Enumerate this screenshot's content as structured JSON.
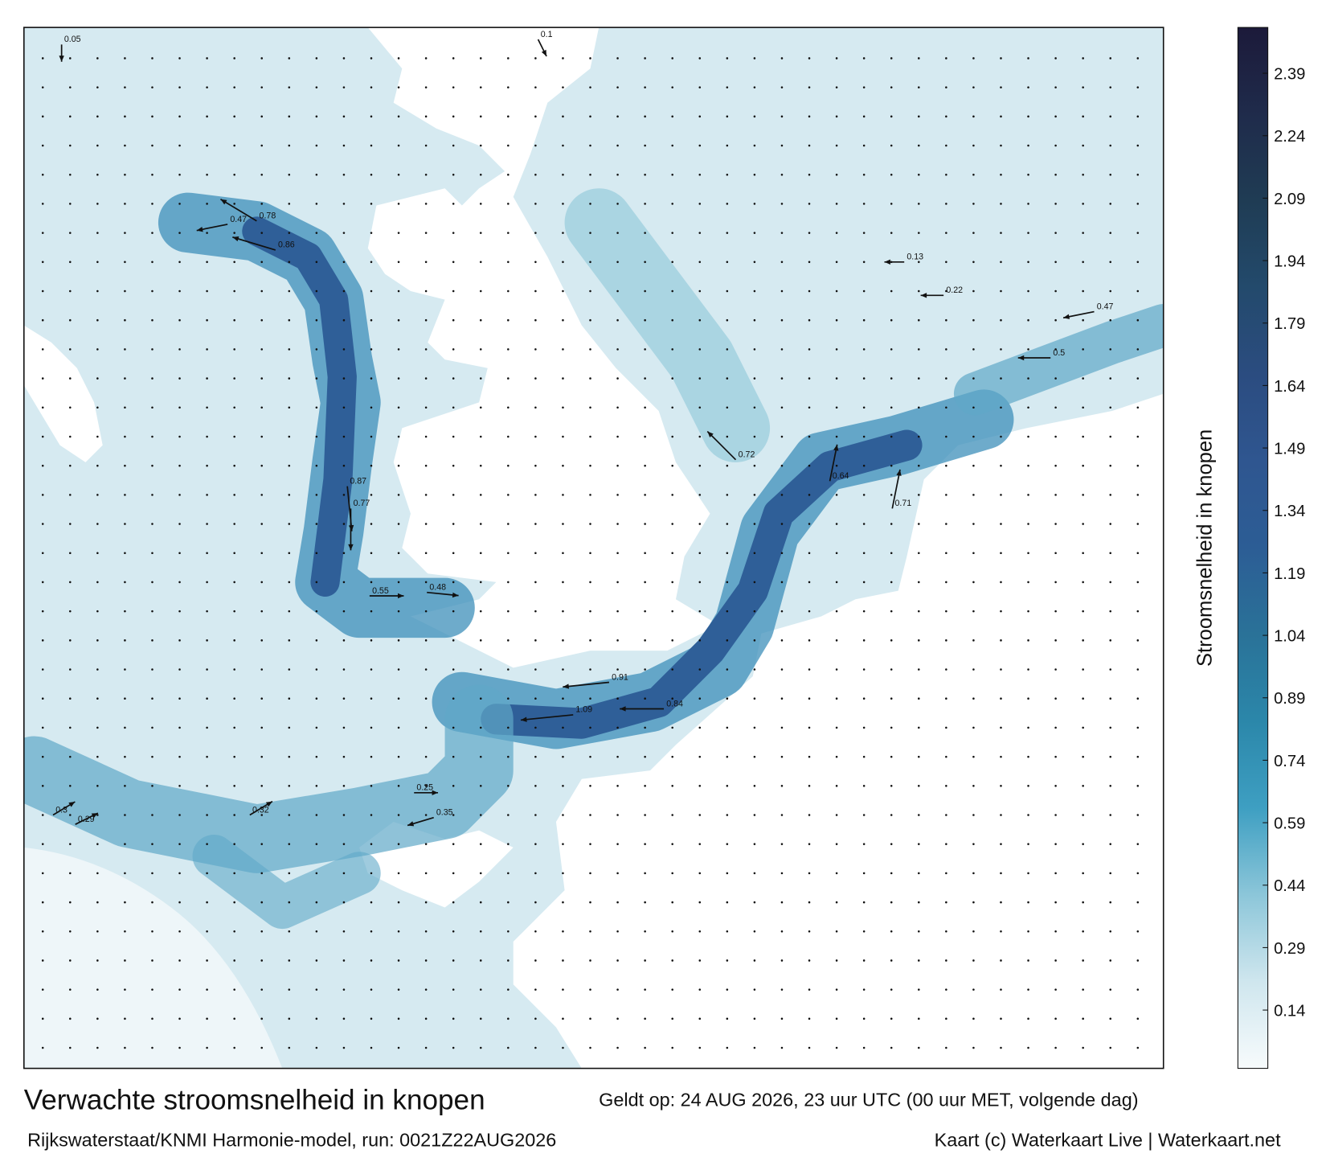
{
  "map": {
    "colorbar": {
      "label": "Stroomsnelheid in knopen",
      "clim": [
        0,
        2.5
      ],
      "ticks": [
        0.14,
        0.29,
        0.44,
        0.59,
        0.74,
        0.89,
        1.04,
        1.19,
        1.34,
        1.49,
        1.64,
        1.79,
        1.94,
        2.09,
        2.24,
        2.39
      ],
      "colors": [
        "#f7fbfc",
        "#cfe6ee",
        "#8cc6d9",
        "#3e9fc2",
        "#2b87aa",
        "#2a7298",
        "#2c5d95",
        "#2f5690",
        "#2b4c80",
        "#234a6c",
        "#1f3c54",
        "#1f2b4b",
        "#1c1a3a"
      ]
    },
    "speed_labels": [
      0.86,
      0.78,
      0.47,
      0.87,
      0.77,
      0.84,
      1.09,
      0.91,
      0.64,
      0.72,
      0.71,
      0.55,
      0.48,
      0.3,
      0.29,
      0.32,
      0.35,
      0.25,
      0.5,
      0.47,
      0.22,
      0.13,
      0.1,
      0.05
    ]
  },
  "footer": {
    "title": "Verwachte stroomsnelheid in knopen",
    "valid": "Geldt op: 24 AUG 2026, 23 uur UTC (00 uur MET, volgende dag)",
    "model": "Rijkswaterstaat/KNMI Harmonie-model, run: 0021Z22AUG2026",
    "credit": "Kaart (c) Waterkaart Live | Waterkaart.net"
  }
}
